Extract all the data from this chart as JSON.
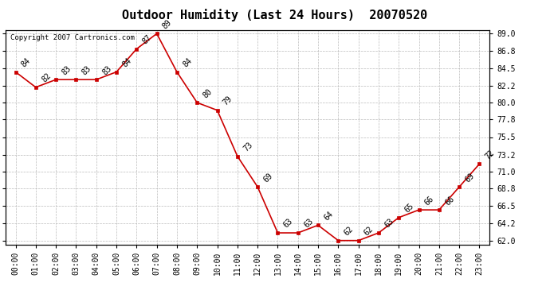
{
  "title": "Outdoor Humidity (Last 24 Hours)  20070520",
  "copyright": "Copyright 2007 Cartronics.com",
  "x_labels": [
    "00:00",
    "01:00",
    "02:00",
    "03:00",
    "04:00",
    "05:00",
    "06:00",
    "07:00",
    "08:00",
    "09:00",
    "10:00",
    "11:00",
    "12:00",
    "13:00",
    "14:00",
    "15:00",
    "16:00",
    "17:00",
    "18:00",
    "19:00",
    "20:00",
    "21:00",
    "22:00",
    "23:00"
  ],
  "y_values": [
    84,
    82,
    83,
    83,
    83,
    84,
    87,
    89,
    84,
    80,
    79,
    73,
    69,
    63,
    63,
    64,
    62,
    62,
    63,
    65,
    66,
    66,
    69,
    72
  ],
  "ylim_min": 61.5,
  "ylim_max": 89.5,
  "y_ticks": [
    62.0,
    64.2,
    66.5,
    68.8,
    71.0,
    73.2,
    75.5,
    77.8,
    80.0,
    82.2,
    84.5,
    86.8,
    89.0
  ],
  "line_color": "#cc0000",
  "marker_color": "#cc0000",
  "bg_color": "#ffffff",
  "grid_color": "#bbbbbb",
  "title_fontsize": 11,
  "tick_fontsize": 7,
  "annotation_fontsize": 7,
  "copyright_fontsize": 6.5
}
